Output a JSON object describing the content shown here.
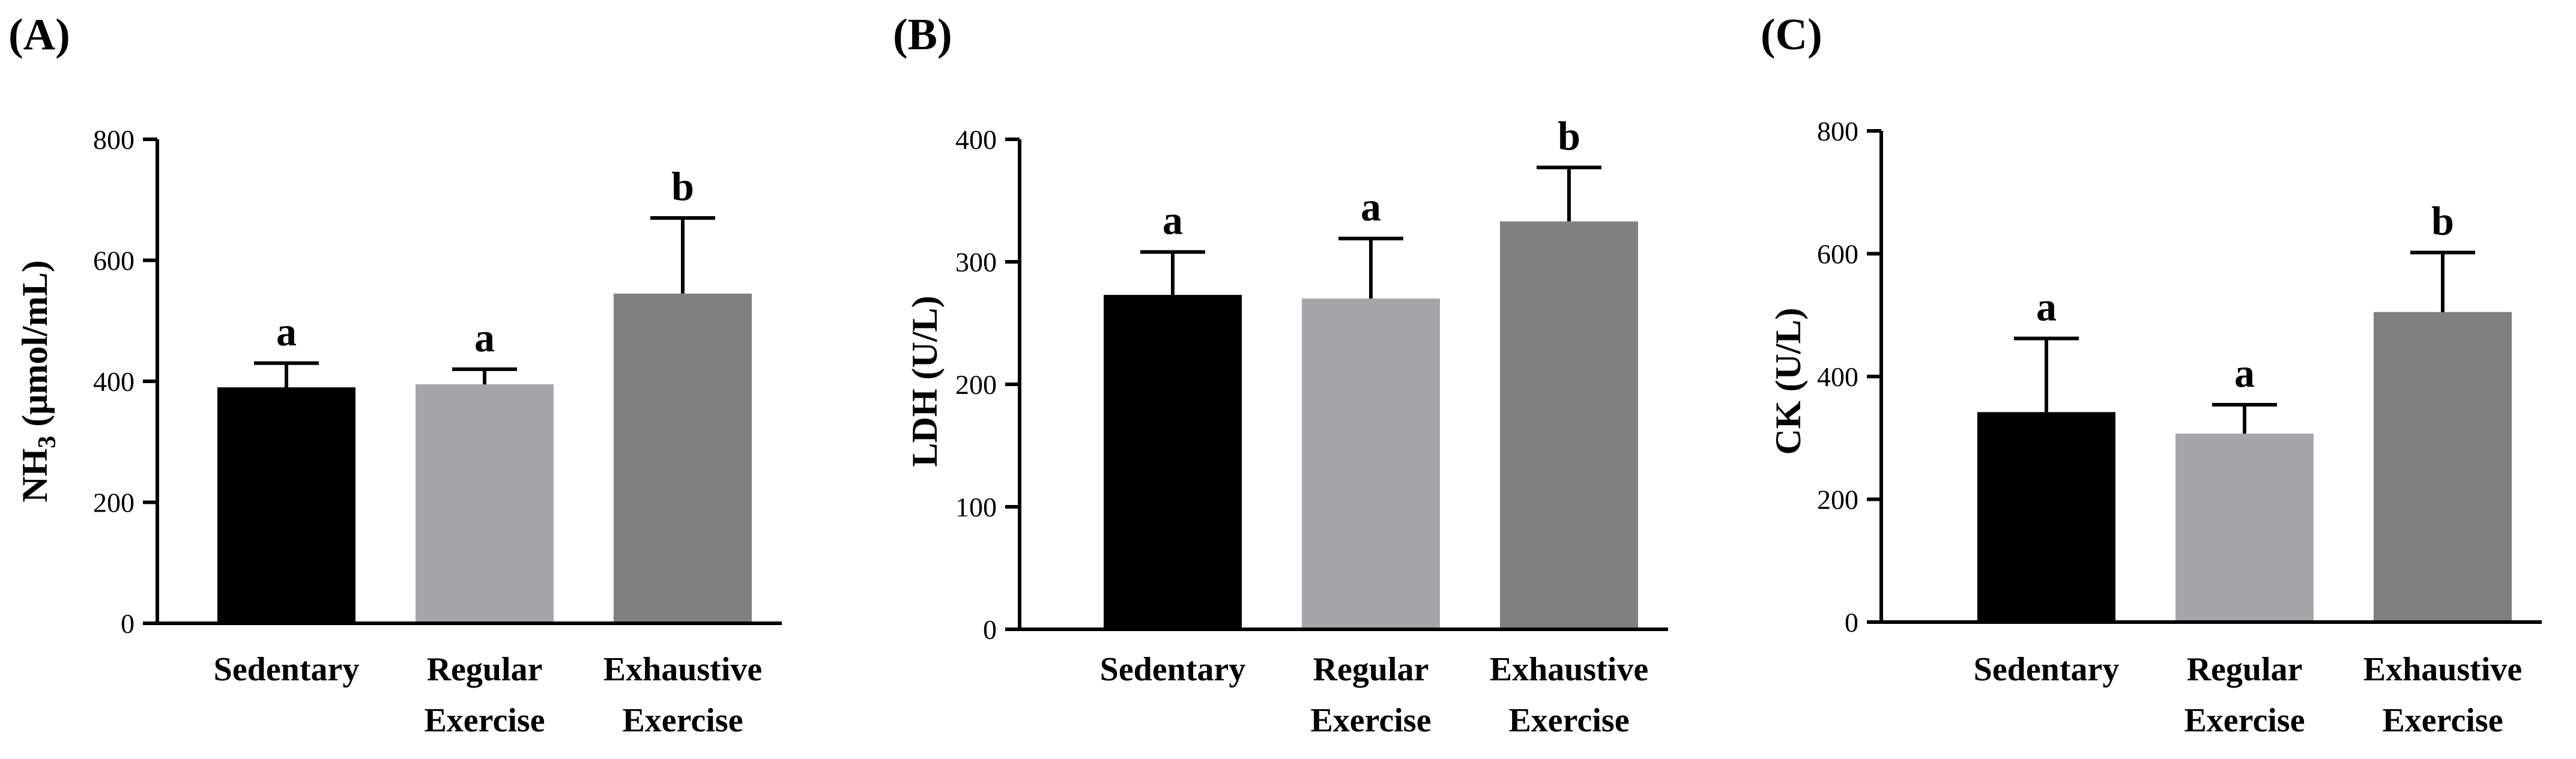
{
  "chart_data": [
    {
      "type": "bar",
      "panel_label": "(A)",
      "ylabel": "NH",
      "ylabel_sub": "3",
      "ylabel_rest": " (μmol/mL)",
      "ylim": [
        0,
        800
      ],
      "yticks": [
        0,
        200,
        400,
        600,
        800
      ],
      "categories": [
        [
          "Sedentary"
        ],
        [
          "Regular",
          "Exercise"
        ],
        [
          "Exhaustive",
          "Exercise"
        ]
      ],
      "values": [
        390,
        395,
        545
      ],
      "errors": [
        40,
        25,
        125
      ],
      "significance": [
        "a",
        "a",
        "b"
      ],
      "bar_colors": [
        "#000000",
        "#a6a5aa",
        "#808080"
      ]
    },
    {
      "type": "bar",
      "panel_label": "(B)",
      "ylabel": "LDH (U/L)",
      "ylim": [
        0,
        400
      ],
      "yticks": [
        0,
        100,
        200,
        300,
        400
      ],
      "categories": [
        [
          "Sedentary"
        ],
        [
          "Regular",
          "Exercise"
        ],
        [
          "Exhaustive",
          "Exercise"
        ]
      ],
      "values": [
        273,
        270,
        333
      ],
      "errors": [
        35,
        49,
        44
      ],
      "significance": [
        "a",
        "a",
        "b"
      ],
      "bar_colors": [
        "#000000",
        "#a6a5aa",
        "#808080"
      ]
    },
    {
      "type": "bar",
      "panel_label": "(C)",
      "ylabel": "CK (U/L)",
      "ylim": [
        0,
        800
      ],
      "yticks": [
        0,
        200,
        400,
        600,
        800
      ],
      "categories": [
        [
          "Sedentary"
        ],
        [
          "Regular",
          "Exercise"
        ],
        [
          "Exhaustive",
          "Exercise"
        ]
      ],
      "values": [
        342,
        307,
        505
      ],
      "errors": [
        120,
        47,
        97
      ],
      "significance": [
        "a",
        "a",
        "b"
      ],
      "bar_colors": [
        "#000000",
        "#a6a5aa",
        "#808080"
      ]
    }
  ]
}
